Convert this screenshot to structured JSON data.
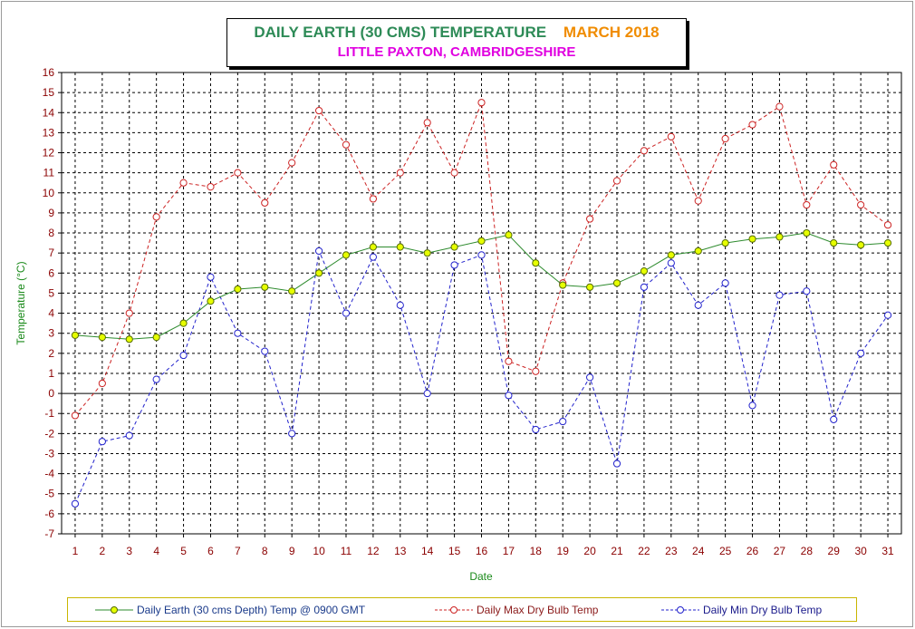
{
  "title": {
    "main": "DAILY EARTH (30 CMS) TEMPERATURE",
    "month": "MARCH 2018",
    "subtitle": "LITTLE PAXTON, CAMBRIDGESHIRE"
  },
  "colors": {
    "earth": "#2e8b2e",
    "earth_marker": "#e6ff00",
    "max": "#cc2222",
    "min": "#2222cc",
    "axis_label": "#1a8a1a",
    "tick_label": "#8b0000",
    "grid": "#000000"
  },
  "chart_data": {
    "type": "line",
    "xlabel": "Date",
    "ylabel": "Temperature (°C)",
    "x": [
      1,
      2,
      3,
      4,
      5,
      6,
      7,
      8,
      9,
      10,
      11,
      12,
      13,
      14,
      15,
      16,
      17,
      18,
      19,
      20,
      21,
      22,
      23,
      24,
      25,
      26,
      27,
      28,
      29,
      30,
      31
    ],
    "ylim": [
      -7,
      16
    ],
    "yticks": [
      16,
      15,
      14,
      13,
      12,
      11,
      10,
      9,
      8,
      7,
      6,
      5,
      4,
      3,
      2,
      1,
      0,
      -1,
      -2,
      -3,
      -4,
      -5,
      -6,
      -7
    ],
    "grid": true,
    "legend_position": "bottom",
    "series": [
      {
        "name": "Daily Earth (30 cms Depth) Temp @ 0900 GMT",
        "style": "solid",
        "values": [
          2.9,
          2.8,
          2.7,
          2.8,
          3.5,
          4.6,
          5.2,
          5.3,
          5.1,
          6.0,
          6.9,
          7.3,
          7.3,
          7.0,
          7.3,
          7.6,
          7.9,
          6.5,
          5.4,
          5.3,
          5.5,
          6.1,
          6.9,
          7.1,
          7.5,
          7.7,
          7.8,
          8.0,
          7.5,
          7.4,
          7.5
        ]
      },
      {
        "name": "Daily Max Dry Bulb Temp",
        "style": "dashed",
        "values": [
          -1.1,
          0.5,
          4.0,
          8.8,
          10.5,
          10.3,
          11.0,
          9.5,
          11.5,
          14.1,
          12.4,
          9.7,
          11.0,
          13.5,
          11.0,
          14.5,
          1.6,
          1.1,
          5.5,
          8.7,
          10.6,
          12.1,
          12.8,
          9.6,
          12.7,
          13.4,
          14.3,
          9.4,
          11.4,
          9.4,
          8.4
        ]
      },
      {
        "name": "Daily Min Dry Bulb Temp",
        "style": "dashed",
        "values": [
          -5.5,
          -2.4,
          -2.1,
          0.7,
          1.9,
          5.8,
          3.0,
          2.1,
          -2.0,
          7.1,
          4.0,
          6.8,
          4.4,
          0.0,
          6.4,
          6.9,
          -0.1,
          -1.8,
          -1.4,
          0.8,
          -3.5,
          5.3,
          6.5,
          4.4,
          5.5,
          -0.6,
          4.9,
          5.1,
          -1.3,
          2.0,
          3.9
        ]
      }
    ]
  }
}
